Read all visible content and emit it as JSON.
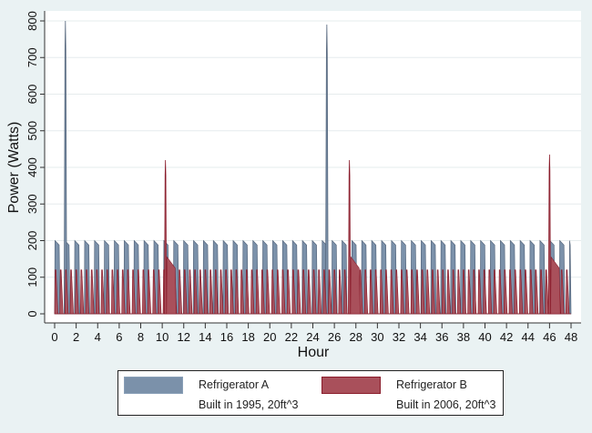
{
  "chart_data": {
    "type": "area",
    "title": "",
    "xlabel": "Hour",
    "ylabel": "Power (Watts)",
    "xlim": [
      0,
      48
    ],
    "ylim": [
      0,
      800
    ],
    "xticks": [
      "0",
      "2",
      "4",
      "6",
      "8",
      "10",
      "12",
      "14",
      "16",
      "18",
      "20",
      "22",
      "24",
      "26",
      "28",
      "30",
      "32",
      "34",
      "36",
      "38",
      "40",
      "42",
      "44",
      "46",
      "48"
    ],
    "yticks": [
      "0",
      "100",
      "200",
      "300",
      "400",
      "500",
      "600",
      "700",
      "800"
    ],
    "grid": "horizontal",
    "legend_position": "bottom",
    "series": [
      {
        "name": "Refrigerator A",
        "description": "Built in 1995, 20ft^3",
        "color": "#7b91aa",
        "stroke": "#56677d",
        "cycle_period_hours": 0.92,
        "on_duration_hours": 0.5,
        "on_power_watts": 200,
        "peaks": [
          {
            "hour": 1.0,
            "watts": 800
          },
          {
            "hour": 25.3,
            "watts": 790
          }
        ]
      },
      {
        "name": "Refrigerator B",
        "description": "Built in 2006, 20ft^3",
        "color": "#a9505b",
        "stroke": "#8a1c2b",
        "cycle_period_hours": 0.48,
        "on_duration_hours": 0.3,
        "on_power_watts": 120,
        "peaks": [
          {
            "hour": 10.3,
            "watts": 420
          },
          {
            "hour": 27.4,
            "watts": 420
          },
          {
            "hour": 46.0,
            "watts": 435
          }
        ]
      }
    ]
  }
}
